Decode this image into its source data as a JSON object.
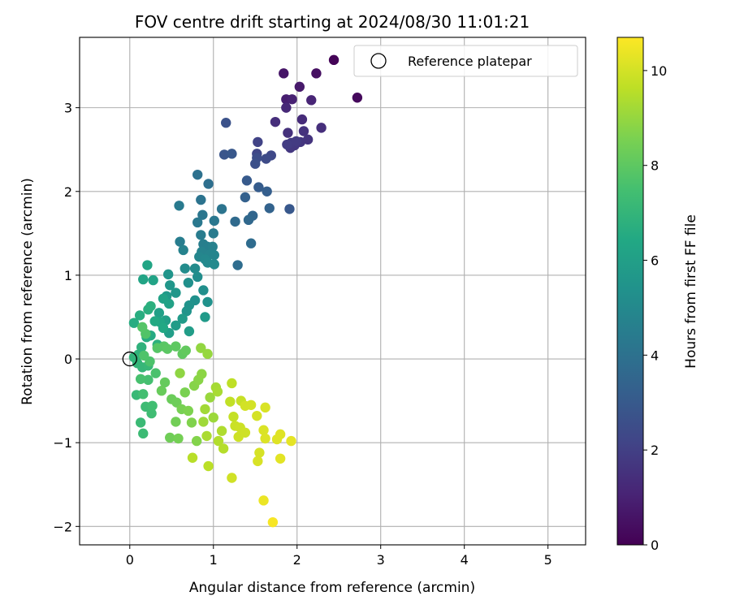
{
  "chart_data": {
    "type": "scatter",
    "title": "FOV centre drift starting at 2024/08/30 11:01:21",
    "xlabel": "Angular distance from reference (arcmin)",
    "ylabel": "Rotation from reference (arcmin)",
    "xlim": [
      -0.6,
      5.45
    ],
    "ylim": [
      -2.22,
      3.84
    ],
    "xticks": [
      0,
      1,
      2,
      3,
      4,
      5
    ],
    "yticks": [
      -2,
      -1,
      0,
      1,
      2,
      3
    ],
    "grid": true,
    "legend": {
      "label": "Reference platepar",
      "position": "top-right"
    },
    "reference_point": {
      "x": 0,
      "y": 0
    },
    "colorbar": {
      "label": "Hours from first FF file",
      "colormap": "viridis",
      "range": [
        0,
        10.7
      ],
      "ticks": [
        0,
        2,
        4,
        6,
        8,
        10
      ]
    },
    "points": [
      {
        "x": 2.44,
        "y": 3.57,
        "c": 0.1
      },
      {
        "x": 2.72,
        "y": 3.12,
        "c": 0.25
      },
      {
        "x": 2.23,
        "y": 3.41,
        "c": 0.45
      },
      {
        "x": 1.84,
        "y": 3.41,
        "c": 0.6
      },
      {
        "x": 2.03,
        "y": 3.25,
        "c": 0.75
      },
      {
        "x": 1.87,
        "y": 3.1,
        "c": 0.9
      },
      {
        "x": 1.94,
        "y": 3.1,
        "c": 1.0
      },
      {
        "x": 2.17,
        "y": 3.09,
        "c": 1.1
      },
      {
        "x": 1.87,
        "y": 3.0,
        "c": 1.2
      },
      {
        "x": 2.06,
        "y": 2.86,
        "c": 1.3
      },
      {
        "x": 1.74,
        "y": 2.83,
        "c": 1.4
      },
      {
        "x": 2.29,
        "y": 2.76,
        "c": 1.45
      },
      {
        "x": 1.89,
        "y": 2.7,
        "c": 1.5
      },
      {
        "x": 2.08,
        "y": 2.72,
        "c": 1.55
      },
      {
        "x": 2.13,
        "y": 2.62,
        "c": 1.6
      },
      {
        "x": 2.04,
        "y": 2.59,
        "c": 1.65
      },
      {
        "x": 1.97,
        "y": 2.55,
        "c": 1.7
      },
      {
        "x": 1.92,
        "y": 2.52,
        "c": 1.75
      },
      {
        "x": 1.93,
        "y": 2.58,
        "c": 1.8
      },
      {
        "x": 1.99,
        "y": 2.6,
        "c": 1.85
      },
      {
        "x": 1.88,
        "y": 2.56,
        "c": 1.9
      },
      {
        "x": 1.53,
        "y": 2.59,
        "c": 2.1
      },
      {
        "x": 1.52,
        "y": 2.45,
        "c": 2.2
      },
      {
        "x": 1.69,
        "y": 2.43,
        "c": 2.3
      },
      {
        "x": 1.63,
        "y": 2.39,
        "c": 2.4
      },
      {
        "x": 1.52,
        "y": 2.4,
        "c": 2.5
      },
      {
        "x": 1.5,
        "y": 2.33,
        "c": 2.6
      },
      {
        "x": 1.15,
        "y": 2.82,
        "c": 2.7
      },
      {
        "x": 1.13,
        "y": 2.44,
        "c": 2.8
      },
      {
        "x": 1.22,
        "y": 2.45,
        "c": 2.9
      },
      {
        "x": 1.91,
        "y": 1.79,
        "c": 2.95
      },
      {
        "x": 1.4,
        "y": 2.13,
        "c": 3.0
      },
      {
        "x": 1.54,
        "y": 2.05,
        "c": 3.1
      },
      {
        "x": 1.64,
        "y": 2.0,
        "c": 3.2
      },
      {
        "x": 1.38,
        "y": 1.93,
        "c": 3.3
      },
      {
        "x": 1.67,
        "y": 1.8,
        "c": 3.4
      },
      {
        "x": 1.47,
        "y": 1.71,
        "c": 3.5
      },
      {
        "x": 1.42,
        "y": 1.66,
        "c": 3.6
      },
      {
        "x": 1.26,
        "y": 1.64,
        "c": 3.7
      },
      {
        "x": 1.45,
        "y": 1.38,
        "c": 3.75
      },
      {
        "x": 1.29,
        "y": 1.12,
        "c": 3.8
      },
      {
        "x": 0.94,
        "y": 2.09,
        "c": 3.9
      },
      {
        "x": 0.81,
        "y": 2.2,
        "c": 4.0
      },
      {
        "x": 0.85,
        "y": 1.9,
        "c": 4.05
      },
      {
        "x": 1.1,
        "y": 1.79,
        "c": 4.1
      },
      {
        "x": 0.87,
        "y": 1.72,
        "c": 4.2
      },
      {
        "x": 1.01,
        "y": 1.65,
        "c": 4.25
      },
      {
        "x": 0.81,
        "y": 1.63,
        "c": 4.3
      },
      {
        "x": 0.59,
        "y": 1.83,
        "c": 4.35
      },
      {
        "x": 1.0,
        "y": 1.5,
        "c": 4.4
      },
      {
        "x": 0.85,
        "y": 1.48,
        "c": 4.45
      },
      {
        "x": 0.6,
        "y": 1.4,
        "c": 4.5
      },
      {
        "x": 0.88,
        "y": 1.37,
        "c": 4.55
      },
      {
        "x": 0.93,
        "y": 1.34,
        "c": 4.6
      },
      {
        "x": 0.99,
        "y": 1.34,
        "c": 4.65
      },
      {
        "x": 0.64,
        "y": 1.3,
        "c": 4.7
      },
      {
        "x": 0.86,
        "y": 1.28,
        "c": 4.75
      },
      {
        "x": 0.96,
        "y": 1.25,
        "c": 4.8
      },
      {
        "x": 1.01,
        "y": 1.24,
        "c": 4.85
      },
      {
        "x": 0.83,
        "y": 1.22,
        "c": 4.9
      },
      {
        "x": 0.9,
        "y": 1.19,
        "c": 4.95
      },
      {
        "x": 0.93,
        "y": 1.15,
        "c": 5.0
      },
      {
        "x": 1.01,
        "y": 1.13,
        "c": 5.05
      },
      {
        "x": 0.78,
        "y": 1.08,
        "c": 5.1
      },
      {
        "x": 0.66,
        "y": 1.08,
        "c": 5.15
      },
      {
        "x": 0.81,
        "y": 0.98,
        "c": 5.2
      },
      {
        "x": 0.88,
        "y": 0.82,
        "c": 5.25
      },
      {
        "x": 0.7,
        "y": 0.91,
        "c": 5.3
      },
      {
        "x": 0.78,
        "y": 0.7,
        "c": 5.35
      },
      {
        "x": 0.93,
        "y": 0.68,
        "c": 5.4
      },
      {
        "x": 0.71,
        "y": 0.64,
        "c": 5.45
      },
      {
        "x": 0.68,
        "y": 0.57,
        "c": 5.5
      },
      {
        "x": 0.46,
        "y": 1.01,
        "c": 5.55
      },
      {
        "x": 0.48,
        "y": 0.88,
        "c": 5.6
      },
      {
        "x": 0.55,
        "y": 0.79,
        "c": 5.65
      },
      {
        "x": 0.44,
        "y": 0.75,
        "c": 5.7
      },
      {
        "x": 0.9,
        "y": 0.5,
        "c": 5.75
      },
      {
        "x": 0.63,
        "y": 0.48,
        "c": 5.8
      },
      {
        "x": 0.55,
        "y": 0.4,
        "c": 5.85
      },
      {
        "x": 0.71,
        "y": 0.33,
        "c": 5.9
      },
      {
        "x": 0.47,
        "y": 0.31,
        "c": 5.95
      },
      {
        "x": 0.43,
        "y": 0.46,
        "c": 6.0
      },
      {
        "x": 0.35,
        "y": 0.55,
        "c": 6.05
      },
      {
        "x": 0.47,
        "y": 0.66,
        "c": 6.1
      },
      {
        "x": 0.4,
        "y": 0.72,
        "c": 6.15
      },
      {
        "x": 0.28,
        "y": 0.94,
        "c": 6.2
      },
      {
        "x": 0.16,
        "y": 0.95,
        "c": 6.25
      },
      {
        "x": 0.21,
        "y": 1.12,
        "c": 6.3
      },
      {
        "x": 0.36,
        "y": 0.44,
        "c": 6.35
      },
      {
        "x": 0.4,
        "y": 0.37,
        "c": 6.4
      },
      {
        "x": 0.3,
        "y": 0.45,
        "c": 6.45
      },
      {
        "x": 0.25,
        "y": 0.28,
        "c": 6.5
      },
      {
        "x": 0.2,
        "y": 0.26,
        "c": 6.55
      },
      {
        "x": 0.05,
        "y": 0.43,
        "c": 6.6
      },
      {
        "x": 0.12,
        "y": 0.52,
        "c": 6.65
      },
      {
        "x": 0.22,
        "y": 0.59,
        "c": 6.7
      },
      {
        "x": 0.25,
        "y": 0.63,
        "c": 6.75
      },
      {
        "x": 0.33,
        "y": 0.17,
        "c": 6.8
      },
      {
        "x": 0.14,
        "y": 0.14,
        "c": 6.85
      },
      {
        "x": 0.1,
        "y": 0.05,
        "c": 6.9
      },
      {
        "x": 0.05,
        "y": 0.02,
        "c": 6.95
      },
      {
        "x": 0.09,
        "y": -0.05,
        "c": 7.0
      },
      {
        "x": 0.15,
        "y": -0.1,
        "c": 7.05
      },
      {
        "x": 0.22,
        "y": -0.08,
        "c": 7.1
      },
      {
        "x": 0.08,
        "y": -0.43,
        "c": 7.15
      },
      {
        "x": 0.13,
        "y": -0.76,
        "c": 7.2
      },
      {
        "x": 0.16,
        "y": -0.89,
        "c": 7.25
      },
      {
        "x": 0.19,
        "y": -0.57,
        "c": 7.3
      },
      {
        "x": 0.26,
        "y": -0.65,
        "c": 7.35
      },
      {
        "x": 0.27,
        "y": -0.56,
        "c": 7.4
      },
      {
        "x": 0.16,
        "y": -0.42,
        "c": 7.45
      },
      {
        "x": 0.22,
        "y": -0.25,
        "c": 7.5
      },
      {
        "x": 0.13,
        "y": -0.24,
        "c": 7.55
      },
      {
        "x": 0.31,
        "y": -0.17,
        "c": 7.6
      },
      {
        "x": 0.24,
        "y": -0.03,
        "c": 7.65
      },
      {
        "x": 0.17,
        "y": 0.04,
        "c": 7.7
      },
      {
        "x": 0.19,
        "y": 0.3,
        "c": 7.75
      },
      {
        "x": 0.15,
        "y": 0.38,
        "c": 7.8
      },
      {
        "x": 0.33,
        "y": 0.13,
        "c": 7.85
      },
      {
        "x": 0.41,
        "y": 0.15,
        "c": 7.9
      },
      {
        "x": 0.45,
        "y": 0.12,
        "c": 7.95
      },
      {
        "x": 0.55,
        "y": 0.15,
        "c": 8.0
      },
      {
        "x": 0.63,
        "y": 0.06,
        "c": 8.05
      },
      {
        "x": 0.67,
        "y": 0.1,
        "c": 8.1
      },
      {
        "x": 0.42,
        "y": -0.28,
        "c": 8.15
      },
      {
        "x": 0.38,
        "y": -0.38,
        "c": 8.2
      },
      {
        "x": 0.5,
        "y": -0.48,
        "c": 8.25
      },
      {
        "x": 0.56,
        "y": -0.52,
        "c": 8.3
      },
      {
        "x": 0.48,
        "y": -0.94,
        "c": 8.35
      },
      {
        "x": 0.55,
        "y": -0.75,
        "c": 8.4
      },
      {
        "x": 0.58,
        "y": -0.95,
        "c": 8.45
      },
      {
        "x": 0.62,
        "y": -0.6,
        "c": 8.5
      },
      {
        "x": 0.66,
        "y": -0.4,
        "c": 8.55
      },
      {
        "x": 0.7,
        "y": -0.62,
        "c": 8.6
      },
      {
        "x": 0.74,
        "y": -0.76,
        "c": 8.65
      },
      {
        "x": 0.8,
        "y": -0.98,
        "c": 8.7
      },
      {
        "x": 0.77,
        "y": -0.32,
        "c": 8.75
      },
      {
        "x": 0.82,
        "y": -0.25,
        "c": 8.8
      },
      {
        "x": 0.86,
        "y": -0.18,
        "c": 8.85
      },
      {
        "x": 0.6,
        "y": -0.17,
        "c": 8.9
      },
      {
        "x": 0.85,
        "y": 0.13,
        "c": 8.95
      },
      {
        "x": 0.93,
        "y": 0.06,
        "c": 9.0
      },
      {
        "x": 0.96,
        "y": -0.46,
        "c": 9.05
      },
      {
        "x": 1.0,
        "y": -0.7,
        "c": 9.1
      },
      {
        "x": 0.88,
        "y": -0.75,
        "c": 9.15
      },
      {
        "x": 0.9,
        "y": -0.6,
        "c": 9.2
      },
      {
        "x": 1.03,
        "y": -0.34,
        "c": 9.25
      },
      {
        "x": 1.05,
        "y": -0.39,
        "c": 9.3
      },
      {
        "x": 0.92,
        "y": -0.92,
        "c": 9.35
      },
      {
        "x": 1.1,
        "y": -0.86,
        "c": 9.4
      },
      {
        "x": 1.06,
        "y": -0.98,
        "c": 9.45
      },
      {
        "x": 1.12,
        "y": -1.07,
        "c": 9.5
      },
      {
        "x": 0.75,
        "y": -1.18,
        "c": 9.55
      },
      {
        "x": 0.94,
        "y": -1.28,
        "c": 9.6
      },
      {
        "x": 1.22,
        "y": -0.29,
        "c": 9.65
      },
      {
        "x": 1.2,
        "y": -0.51,
        "c": 9.7
      },
      {
        "x": 1.24,
        "y": -0.69,
        "c": 9.75
      },
      {
        "x": 1.33,
        "y": -0.5,
        "c": 9.8
      },
      {
        "x": 1.26,
        "y": -0.8,
        "c": 9.85
      },
      {
        "x": 1.32,
        "y": -0.82,
        "c": 9.88
      },
      {
        "x": 1.3,
        "y": -0.93,
        "c": 9.9
      },
      {
        "x": 1.38,
        "y": -0.88,
        "c": 9.92
      },
      {
        "x": 1.22,
        "y": -1.42,
        "c": 9.95
      },
      {
        "x": 1.38,
        "y": -0.56,
        "c": 9.98
      },
      {
        "x": 1.45,
        "y": -0.55,
        "c": 10.0
      },
      {
        "x": 1.52,
        "y": -0.68,
        "c": 10.02
      },
      {
        "x": 1.55,
        "y": -1.12,
        "c": 10.05
      },
      {
        "x": 1.53,
        "y": -1.22,
        "c": 10.08
      },
      {
        "x": 1.62,
        "y": -0.58,
        "c": 10.1
      },
      {
        "x": 1.6,
        "y": -0.85,
        "c": 10.12
      },
      {
        "x": 1.62,
        "y": -0.95,
        "c": 10.15
      },
      {
        "x": 1.76,
        "y": -0.96,
        "c": 10.18
      },
      {
        "x": 1.8,
        "y": -0.9,
        "c": 10.2
      },
      {
        "x": 1.8,
        "y": -1.19,
        "c": 10.25
      },
      {
        "x": 1.93,
        "y": -0.98,
        "c": 10.3
      },
      {
        "x": 1.6,
        "y": -1.69,
        "c": 10.4
      },
      {
        "x": 1.71,
        "y": -1.95,
        "c": 10.6
      }
    ]
  }
}
